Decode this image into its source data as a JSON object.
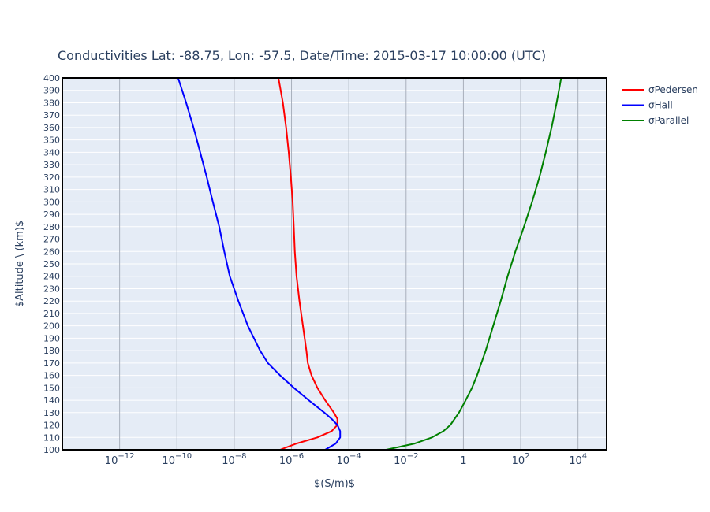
{
  "chart_data": {
    "type": "line",
    "title": "Conductivities Lat: -88.75, Lon: -57.5, Date/Time: 2015-03-17 10:00:00 (UTC)",
    "xlabel": "$(S/m)$",
    "ylabel": "$Altitude \\ (km)$",
    "xscale": "log",
    "xlim": [
      1e-14,
      100000.0
    ],
    "ylim": [
      100,
      400
    ],
    "grid": true,
    "legend_position": "top-right",
    "x_ticks": [
      {
        "value": 1e-12,
        "base": "10",
        "exp": "−12"
      },
      {
        "value": 1e-10,
        "base": "10",
        "exp": "−10"
      },
      {
        "value": 1e-08,
        "base": "10",
        "exp": "−8"
      },
      {
        "value": 1e-06,
        "base": "10",
        "exp": "−6"
      },
      {
        "value": 0.0001,
        "base": "10",
        "exp": "−4"
      },
      {
        "value": 0.01,
        "base": "10",
        "exp": "−2"
      },
      {
        "value": 1,
        "base": "1",
        "exp": ""
      },
      {
        "value": 100.0,
        "base": "10",
        "exp": "2"
      },
      {
        "value": 10000.0,
        "base": "10",
        "exp": "4"
      }
    ],
    "y_ticks": [
      "100",
      "110",
      "120",
      "130",
      "140",
      "150",
      "160",
      "170",
      "180",
      "190",
      "200",
      "210",
      "220",
      "230",
      "240",
      "250",
      "260",
      "270",
      "280",
      "290",
      "300",
      "310",
      "320",
      "330",
      "340",
      "350",
      "360",
      "370",
      "380",
      "390",
      "400"
    ],
    "series": [
      {
        "name": "σPedersen",
        "color": "#ff0000",
        "altitude": [
          100,
          105,
          110,
          115,
          120,
          125,
          130,
          140,
          150,
          160,
          170,
          180,
          200,
          220,
          240,
          260,
          280,
          300,
          320,
          340,
          360,
          380,
          400
        ],
        "values": [
          4e-07,
          1.5e-06,
          8e-06,
          2.5e-05,
          4e-05,
          4e-05,
          3e-05,
          1.5e-05,
          8e-06,
          5e-06,
          3.7e-06,
          3.3e-06,
          2.5e-06,
          1.9e-06,
          1.5e-06,
          1.3e-06,
          1.2e-06,
          1.1e-06,
          9.5e-07,
          8e-07,
          6.5e-07,
          5e-07,
          3.5e-07
        ]
      },
      {
        "name": "σHall",
        "color": "#0000ff",
        "altitude": [
          100,
          105,
          110,
          115,
          120,
          125,
          130,
          140,
          150,
          160,
          170,
          180,
          200,
          220,
          240,
          260,
          280,
          300,
          320,
          340,
          360,
          380,
          400
        ],
        "values": [
          1.5e-05,
          3.5e-05,
          5e-05,
          5e-05,
          4e-05,
          2.5e-05,
          1.4e-05,
          4e-06,
          1.2e-06,
          4e-07,
          1.5e-07,
          8e-08,
          3e-08,
          1.4e-08,
          7e-09,
          4.5e-09,
          3e-09,
          1.8e-09,
          1.1e-09,
          6.5e-10,
          3.8e-10,
          2.1e-10,
          1.1e-10
        ]
      },
      {
        "name": "σParallel",
        "color": "#008000",
        "altitude": [
          100,
          105,
          110,
          115,
          120,
          130,
          140,
          150,
          160,
          180,
          200,
          220,
          240,
          260,
          280,
          300,
          320,
          340,
          360,
          380,
          400
        ],
        "values": [
          0.002,
          0.02,
          0.08,
          0.2,
          0.35,
          0.7,
          1.2,
          2,
          3,
          6,
          11,
          20,
          35,
          65,
          130,
          250,
          450,
          750,
          1200,
          1800,
          2600
        ]
      }
    ]
  }
}
